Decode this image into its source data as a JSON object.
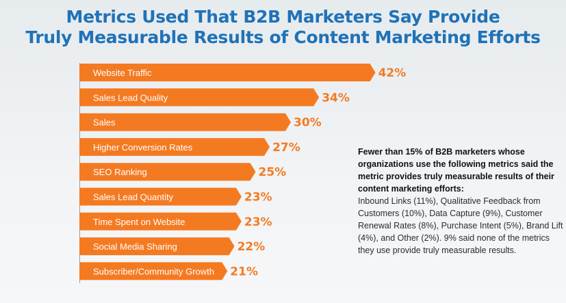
{
  "title": {
    "line1": "Metrics Used That B2B Marketers Say Provide",
    "line2": "Truly Measurable Results of Content Marketing Efforts"
  },
  "colors": {
    "bar": "#f47a22",
    "title": "#1f72b7",
    "value": "#f47a22"
  },
  "chart_data": {
    "type": "bar",
    "orientation": "horizontal",
    "categories": [
      "Website Traffic",
      "Sales Lead Quality",
      "Sales",
      "Higher Conversion Rates",
      "SEO Ranking",
      "Sales Lead Quantity",
      "Time Spent on Website",
      "Social Media Sharing",
      "Subscriber/Community Growth"
    ],
    "values": [
      42,
      34,
      30,
      27,
      25,
      23,
      23,
      22,
      21
    ],
    "value_labels": [
      "42%",
      "34%",
      "30%",
      "27%",
      "25%",
      "23%",
      "23%",
      "22%",
      "21%"
    ],
    "title": "Metrics Used That B2B Marketers Say Provide Truly Measurable Results of Content Marketing Efforts",
    "xlabel": "",
    "ylabel": "",
    "grid": false,
    "legend": "none"
  },
  "note": {
    "lead": "Fewer than 15% of B2B marketers whose organizations use the following metrics said the metric provides truly measurable results of their content marketing efforts:",
    "body": "Inbound Links (11%), Qualitative Feedback from Customers (10%), Data Capture (9%), Customer Renewal Rates (8%), Purchase Intent (5%), Brand Lift (4%), and Other (2%). 9% said none of the metrics they use provide truly measurable results."
  }
}
